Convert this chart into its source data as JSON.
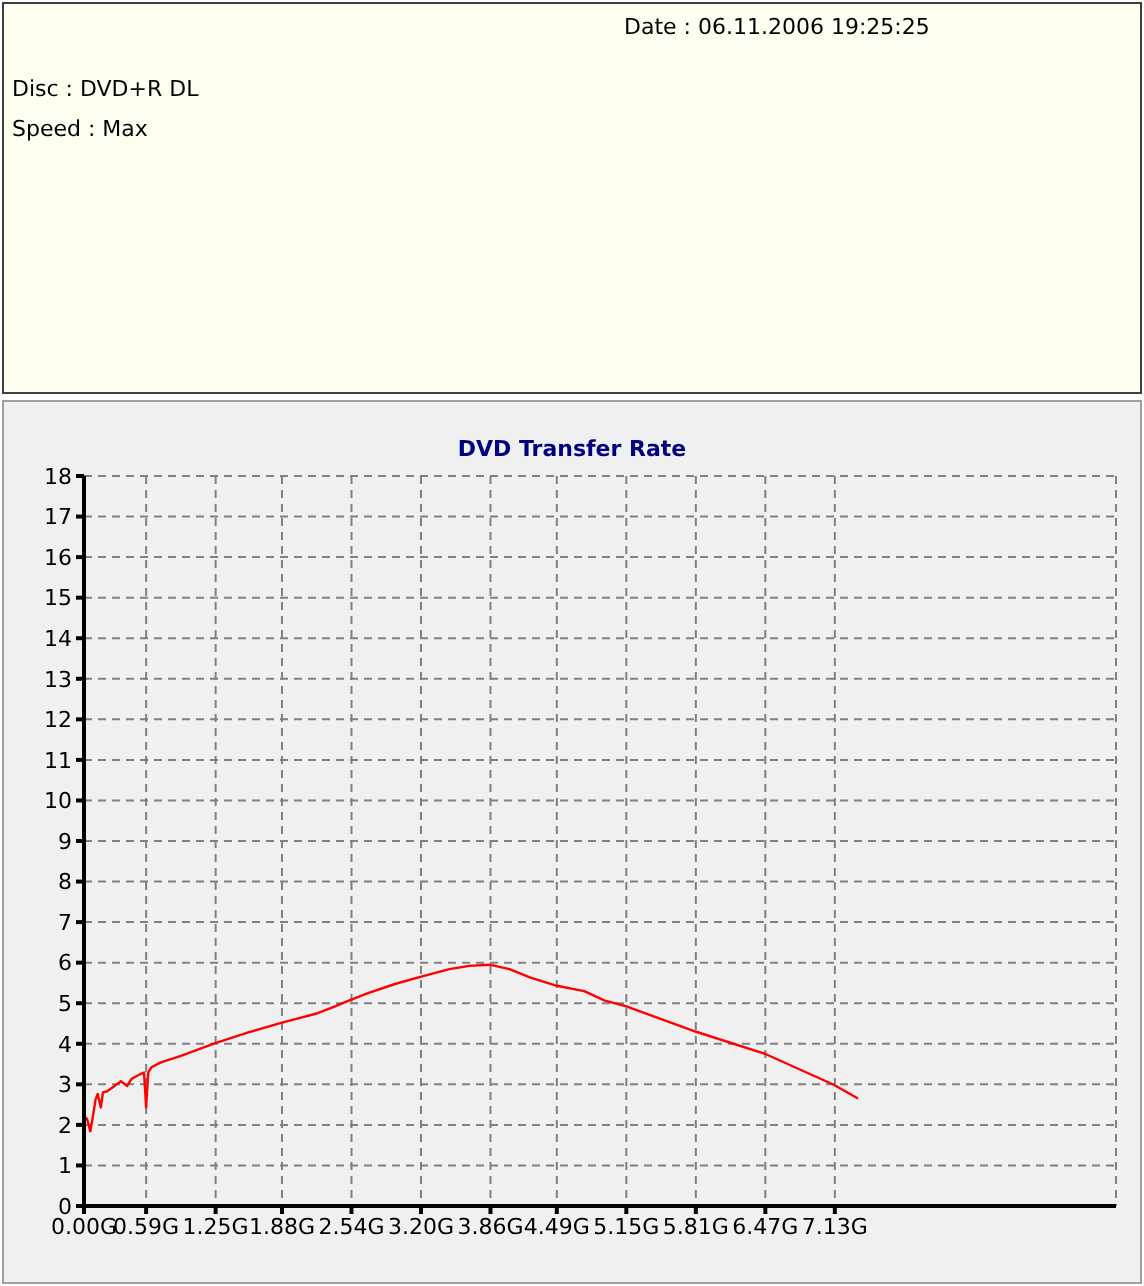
{
  "chart_data": {
    "type": "line",
    "title": "DVD Transfer Rate",
    "annotations": [
      "Date : 06.11.2006 19:25:25",
      "Disc : DVD+R DL",
      "Speed : Max"
    ],
    "x": [
      0,
      0.03,
      0.06,
      0.08,
      0.11,
      0.13,
      0.16,
      0.18,
      0.22,
      0.29,
      0.35,
      0.41,
      0.45,
      0.54,
      0.57,
      0.59,
      0.61,
      0.64,
      0.73,
      0.92,
      1.24,
      1.56,
      1.88,
      2.2,
      2.39,
      2.52,
      2.71,
      2.96,
      3.22,
      3.47,
      3.66,
      3.85,
      4.04,
      4.24,
      4.49,
      4.75,
      4.94,
      5.15,
      5.82,
      6.46,
      7.12,
      7.35
    ],
    "series": [
      {
        "color": "#ff0000",
        "values": [
          2.22,
          2.14,
          1.84,
          2.14,
          2.63,
          2.76,
          2.43,
          2.8,
          2.83,
          2.96,
          3.08,
          2.96,
          3.13,
          3.26,
          3.29,
          2.43,
          3.29,
          3.42,
          3.54,
          3.7,
          4.01,
          4.28,
          4.52,
          4.74,
          4.93,
          5.07,
          5.26,
          5.48,
          5.67,
          5.84,
          5.92,
          5.95,
          5.84,
          5.63,
          5.43,
          5.3,
          5.07,
          4.92,
          4.29,
          3.76,
          2.99,
          2.65
        ]
      }
    ],
    "xlim": [
      0,
      9.8
    ],
    "xticks": [
      {
        "value": 0,
        "label": "0.00G"
      },
      {
        "value": 0.59,
        "label": "0.59G"
      },
      {
        "value": 1.25,
        "label": "1.25G"
      },
      {
        "value": 1.88,
        "label": "1.88G"
      },
      {
        "value": 2.54,
        "label": "2.54G"
      },
      {
        "value": 3.2,
        "label": "3.20G"
      },
      {
        "value": 3.86,
        "label": "3.86G"
      },
      {
        "value": 4.49,
        "label": "4.49G"
      },
      {
        "value": 5.15,
        "label": "5.15G"
      },
      {
        "value": 5.81,
        "label": "5.81G"
      },
      {
        "value": 6.47,
        "label": "6.47G"
      },
      {
        "value": 7.13,
        "label": "7.13G"
      }
    ],
    "ylim": [
      0,
      18
    ],
    "yticks": [
      0,
      1,
      2,
      3,
      4,
      5,
      6,
      7,
      8,
      9,
      10,
      11,
      12,
      13,
      14,
      15,
      16,
      17,
      18
    ],
    "grid": true
  }
}
